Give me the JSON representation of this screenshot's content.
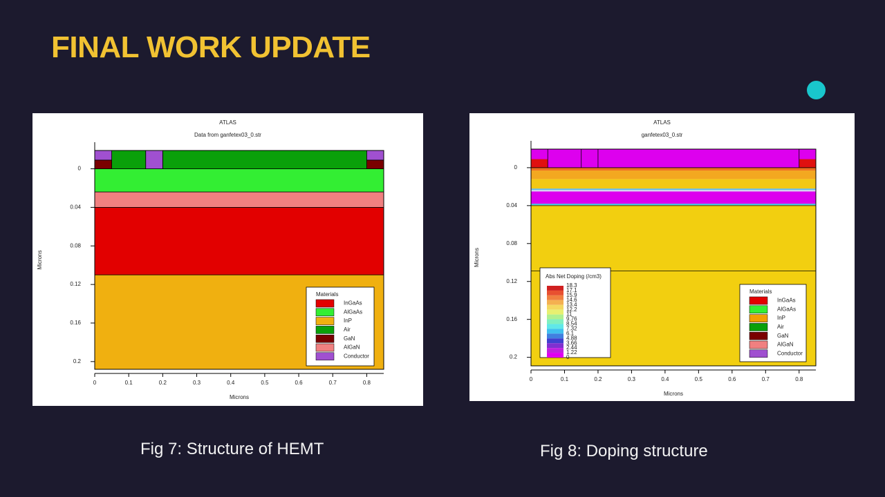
{
  "slide_title": "FINAL WORK UPDATE",
  "captions": [
    "Fig 7: Structure of HEMT",
    "Fig 8: Doping structure"
  ],
  "chart_data": [
    {
      "type": "structure",
      "title": "ATLAS",
      "subtitle": "Data from ganfetex03_0.str",
      "xlabel": "Microns",
      "ylabel": "Microns",
      "xlim": [
        0,
        0.85
      ],
      "ylim": [
        -0.019,
        0.208
      ],
      "xticks": [
        0,
        0.1,
        0.2,
        0.3,
        0.4,
        0.5,
        0.6,
        0.7,
        0.8
      ],
      "yticks": [
        0,
        0.04,
        0.08,
        0.12,
        0.16,
        0.2
      ],
      "outline": true,
      "regions": [
        {
          "x": [
            0,
            0.85
          ],
          "y": [
            0.11,
            0.208
          ],
          "color": "#f0b010"
        },
        {
          "x": [
            0,
            0.85
          ],
          "y": [
            0.04,
            0.11
          ],
          "color": "#e20000"
        },
        {
          "x": [
            0,
            0.85
          ],
          "y": [
            0.024,
            0.04
          ],
          "color": "#f08080"
        },
        {
          "x": [
            0,
            0.85
          ],
          "y": [
            0,
            0.024
          ],
          "color": "#33ee33"
        },
        {
          "x": [
            0.05,
            0.15
          ],
          "y": [
            -0.019,
            0
          ],
          "color": "#0aa00a"
        },
        {
          "x": [
            0.2,
            0.8
          ],
          "y": [
            -0.019,
            0
          ],
          "color": "#0aa00a"
        },
        {
          "x": [
            0.15,
            0.2
          ],
          "y": [
            -0.019,
            0
          ],
          "color": "#a050d0"
        },
        {
          "x": [
            0,
            0.05
          ],
          "y": [
            -0.019,
            -0.009
          ],
          "color": "#a050d0"
        },
        {
          "x": [
            0,
            0.05
          ],
          "y": [
            -0.009,
            0
          ],
          "color": "#7a0000"
        },
        {
          "x": [
            0.8,
            0.85
          ],
          "y": [
            -0.019,
            -0.009
          ],
          "color": "#a050d0"
        },
        {
          "x": [
            0.8,
            0.85
          ],
          "y": [
            -0.009,
            0
          ],
          "color": "#7a0000"
        }
      ],
      "legend_title": "Materials",
      "materials": [
        {
          "name": "InGaAs",
          "color": "#e20000"
        },
        {
          "name": "AlGaAs",
          "color": "#33ee33"
        },
        {
          "name": "InP",
          "color": "#f0b010"
        },
        {
          "name": "Air",
          "color": "#0aa00a"
        },
        {
          "name": "GaN",
          "color": "#7a0000"
        },
        {
          "name": "AlGaN",
          "color": "#f08080"
        },
        {
          "name": "Conductor",
          "color": "#a050d0"
        }
      ]
    },
    {
      "type": "structure",
      "title": "ATLAS",
      "subtitle": "ganfetex03_0.str",
      "xlabel": "Microns",
      "ylabel": "Microns",
      "xlim": [
        0,
        0.85
      ],
      "ylim": [
        -0.0196,
        0.209
      ],
      "xticks": [
        0,
        0.1,
        0.2,
        0.3,
        0.4,
        0.5,
        0.6,
        0.7,
        0.8
      ],
      "yticks": [
        0,
        0.04,
        0.08,
        0.12,
        0.16,
        0.2
      ],
      "outline": false,
      "regions": [
        {
          "x": [
            0,
            0.85
          ],
          "y": [
            0.0395,
            0.209
          ],
          "color": "#f2cf10"
        },
        {
          "x": [
            0,
            0.85
          ],
          "y": [
            0.038,
            0.0395
          ],
          "color": "#40c8e0"
        },
        {
          "x": [
            0,
            0.85
          ],
          "y": [
            0.025,
            0.038
          ],
          "color": "#dd00ee"
        },
        {
          "x": [
            0,
            0.85
          ],
          "y": [
            0.0235,
            0.025
          ],
          "color": "#d8d8f0"
        },
        {
          "x": [
            0,
            0.85
          ],
          "y": [
            0.022,
            0.0235
          ],
          "color": "#5fb8e8"
        },
        {
          "x": [
            0,
            0.85
          ],
          "y": [
            0.012,
            0.022
          ],
          "color": "#f2c814"
        },
        {
          "x": [
            0,
            0.85
          ],
          "y": [
            0.003,
            0.012
          ],
          "color": "#f3a820"
        },
        {
          "x": [
            0,
            0.85
          ],
          "y": [
            0,
            0.003
          ],
          "color": "#f07020"
        },
        {
          "x": [
            0,
            0.85
          ],
          "y": [
            -0.0196,
            0
          ],
          "color": "#dd00ee"
        },
        {
          "x": [
            0,
            0.05
          ],
          "y": [
            -0.009,
            0
          ],
          "color": "#e01010"
        },
        {
          "x": [
            0.8,
            0.85
          ],
          "y": [
            -0.009,
            0
          ],
          "color": "#e01010"
        }
      ],
      "boundaries_y": [
        0,
        0.04,
        0.109
      ],
      "boundaries_x": [
        0.05,
        0.15,
        0.2,
        0.8
      ],
      "colorbar": {
        "title": "Abs Net Doping (/cm3)",
        "ticks": [
          18.3,
          17.1,
          15.9,
          14.6,
          13.4,
          12.2,
          11,
          9.76,
          8.54,
          7.32,
          6.1,
          4.88,
          3.66,
          2.44,
          1.22,
          0
        ],
        "colors": [
          "#d02020",
          "#e85030",
          "#f08040",
          "#f4b050",
          "#f4d860",
          "#e8f070",
          "#b0f090",
          "#80f0c0",
          "#60e8e8",
          "#40c0f0",
          "#4080e0",
          "#4040d0",
          "#8030d0",
          "#c020e0",
          "#e000f0"
        ]
      },
      "legend_title": "Materials",
      "materials": [
        {
          "name": "InGaAs",
          "color": "#e20000"
        },
        {
          "name": "AlGaAs",
          "color": "#33ee33"
        },
        {
          "name": "InP",
          "color": "#f0a000"
        },
        {
          "name": "Air",
          "color": "#0aa00a"
        },
        {
          "name": "GaN",
          "color": "#7a0000"
        },
        {
          "name": "AlGaN",
          "color": "#f08080"
        },
        {
          "name": "Conductor",
          "color": "#a050d0"
        }
      ]
    }
  ]
}
